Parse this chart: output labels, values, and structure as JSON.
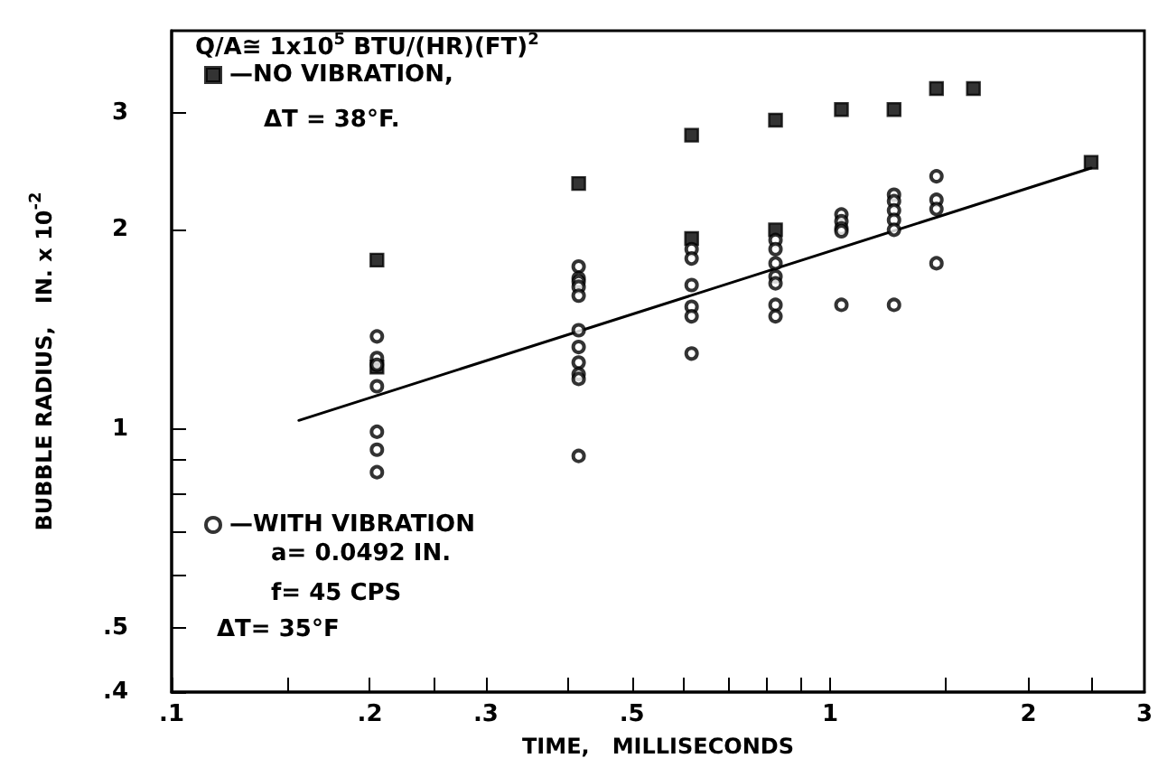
{
  "chart_data": {
    "type": "scatter",
    "xlabel": "TIME,   MILLISECONDS",
    "ylabel": "BUBBLE RADIUS,   IN. x 10$^{-2}$",
    "log": "xy",
    "grid": false,
    "legend": "top left",
    "xlim": [
      0.1,
      3
    ],
    "ylim": [
      0.4,
      4
    ],
    "xticks": [
      {
        "value": 0.1,
        "label": ".1"
      },
      {
        "value": 0.15,
        "label": null
      },
      {
        "value": 0.2,
        "label": ".2"
      },
      {
        "value": 0.25,
        "label": null
      },
      {
        "value": 0.3,
        "label": ".3"
      },
      {
        "value": 0.4,
        "label": null
      },
      {
        "value": 0.5,
        "label": ".5"
      },
      {
        "value": 0.6,
        "label": null
      },
      {
        "value": 0.7,
        "label": null
      },
      {
        "value": 0.8,
        "label": null
      },
      {
        "value": 0.9,
        "label": null
      },
      1,
      {
        "value": 1.5,
        "label": null
      },
      2,
      {
        "value": 2.5,
        "label": null
      },
      3
    ],
    "yticks": [
      {
        "value": 0.4,
        "label": ".4"
      },
      {
        "value": 0.5,
        "label": ".5"
      },
      {
        "value": 0.6,
        "label": null
      },
      {
        "value": 0.7,
        "label": null
      },
      {
        "value": 0.8,
        "label": null
      },
      {
        "value": 0.9,
        "label": null
      },
      1,
      2,
      3
    ],
    "annotations": [
      "Q/A≅ 1x10$^{5}$ BTU/(HR)(FT)$^{2}$",
      "ΔT = 38°F.",
      "a= 0.0492 IN.",
      "f= 45 CPS",
      "ΔT= 35°F"
    ],
    "series": [
      {
        "name": "—NO VIBRATION,",
        "color": "#000000",
        "marker": "square",
        "x": [
          0.205,
          0.205,
          0.415,
          0.616,
          0.616,
          0.826,
          0.826,
          1.04,
          1.25,
          1.45,
          1.65,
          2.49
        ],
        "values": [
          1.8,
          1.24,
          2.35,
          2.78,
          1.94,
          2.93,
          2.0,
          3.04,
          3.04,
          3.27,
          3.27,
          2.53
        ]
      },
      {
        "name": "—WITH VIBRATION",
        "color": "#000000",
        "marker": "circle",
        "x": [
          0.205,
          0.205,
          0.205,
          0.205,
          0.205,
          0.205,
          0.205,
          0.415,
          0.415,
          0.415,
          0.415,
          0.415,
          0.415,
          0.415,
          0.415,
          0.415,
          0.415,
          0.415,
          0.616,
          0.616,
          0.616,
          0.616,
          0.616,
          0.616,
          0.826,
          0.826,
          0.826,
          0.826,
          0.826,
          0.826,
          0.826,
          1.04,
          1.04,
          1.04,
          1.04,
          1.04,
          1.25,
          1.25,
          1.25,
          1.25,
          1.25,
          1.25,
          1.45,
          1.45,
          1.45,
          1.45
        ],
        "values": [
          1.38,
          1.28,
          1.25,
          1.16,
          0.99,
          0.93,
          0.86,
          1.76,
          1.69,
          1.67,
          1.64,
          1.59,
          1.41,
          1.33,
          1.26,
          1.21,
          1.19,
          0.91,
          1.87,
          1.81,
          1.65,
          1.53,
          1.48,
          1.3,
          1.93,
          1.87,
          1.78,
          1.7,
          1.66,
          1.54,
          1.48,
          2.11,
          2.06,
          2.01,
          1.99,
          1.54,
          2.26,
          2.21,
          2.14,
          2.07,
          2.0,
          1.54,
          2.41,
          2.22,
          2.15,
          1.78
        ]
      },
      {
        "type": "line",
        "color": "#000000",
        "marker": "none",
        "line_style": "solid",
        "x": [
          0.156,
          2.49
        ],
        "values": [
          1.03,
          2.48
        ]
      }
    ]
  }
}
